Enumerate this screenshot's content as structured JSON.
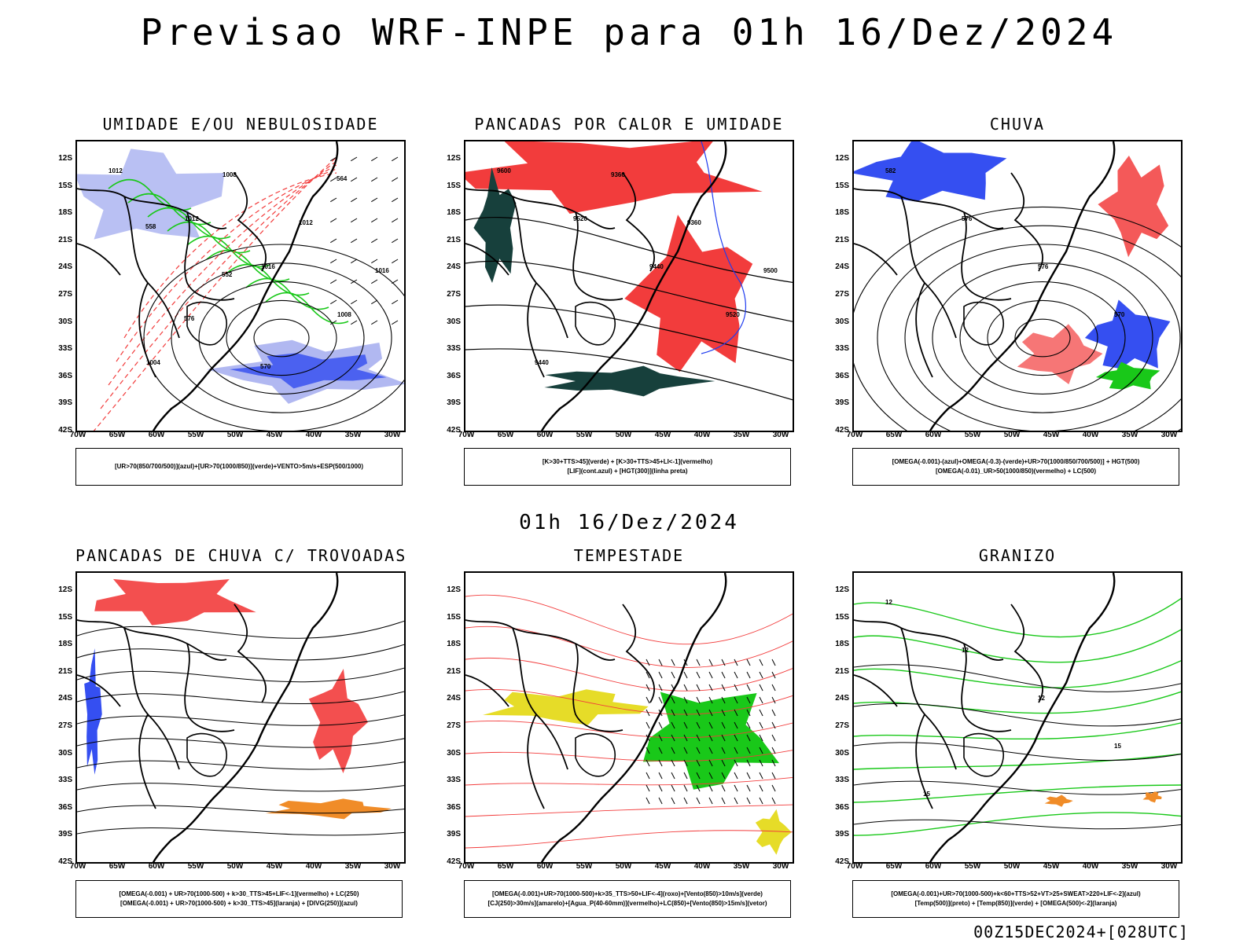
{
  "title": "Previsao WRF-INPE  para 01h 16/Dez/2024",
  "subtitle": "01h 16/Dez/2024",
  "run_info": "00Z15DEC2024+[028UTC]",
  "lat_labels": [
    "12S",
    "15S",
    "18S",
    "21S",
    "24S",
    "27S",
    "30S",
    "33S",
    "36S",
    "39S",
    "42S"
  ],
  "lon_labels": [
    "70W",
    "65W",
    "60W",
    "55W",
    "50W",
    "45W",
    "40W",
    "35W",
    "30W"
  ],
  "colors": {
    "red": "#f23c3c",
    "green": "#19c819",
    "blue": "#1f3cf0",
    "lightblue": "#a8b0f0",
    "yellow": "#e6dc28",
    "orange": "#f08c28",
    "darkteal": "#17403c"
  },
  "panels": [
    {
      "id": "umidade",
      "title": "UMIDADE E/OU NEBULOSIDADE",
      "legend": [
        "[UR>70(850/700/500)](azul)+[UR>70(1000/850)](verde)+VENTO>5m/s+ESP(500/1000)"
      ],
      "contour_labels": [
        "1012",
        "1012",
        "1016",
        "1008",
        "1004",
        "1008",
        "1012",
        "1016",
        "576",
        "570",
        "564",
        "558",
        "552"
      ]
    },
    {
      "id": "pancadas-calor",
      "title": "PANCADAS POR CALOR E UMIDADE",
      "legend": [
        "[K>30+TTS>45](verde) + [K>30+TTS>45+LI<-1](vermelho)",
        "[LIF](cont.azul) + [HGT(300)](linha preta)"
      ],
      "contour_labels": [
        "9600",
        "9520",
        "9440",
        "9520",
        "9440",
        "9360",
        "9360",
        "9500"
      ]
    },
    {
      "id": "chuva",
      "title": "CHUVA",
      "legend": [
        "[OMEGA(-0.001)-(azul)+OMEGA(-0.3)-(verde)+UR>70(1000/850/700/500)] + HGT(500)",
        "[OMEGA(-0.01)_UR>50(1000/850)(vermelho) + LC(500)"
      ],
      "contour_labels": [
        "582",
        "576",
        "576",
        "570"
      ]
    },
    {
      "id": "pancadas-trovoadas",
      "title": "PANCADAS DE CHUVA C/ TROVOADAS",
      "legend": [
        "[OMEGA(-0.001) + UR>70(1000-500) + k>30_TTS>45+LIF<-1](vermelho) + LC(250)",
        "[OMEGA(-0.001) + UR>70(1000-500) + k>30_TTS>45](laranja) + [DIVG(250)](azul)"
      ],
      "contour_labels": []
    },
    {
      "id": "tempestade",
      "title": "TEMPESTADE",
      "legend": [
        "[OMEGA(-0.001)+UR>70(1000-500)+k>35_TTS>50+LIF<-4](roxo)+[Vento(850)>10m/s](verde)",
        "[CJ(250)>30m/s](amarelo)+[Agua_P(40-60mm)](vermelho)+LC(850)+[Vento(850)>15m/s](vetor)"
      ],
      "contour_labels": []
    },
    {
      "id": "granizo",
      "title": "GRANIZO",
      "legend": [
        "[OMEGA(-0.001)+UR>70(1000-500)+k<60+TTS>52+VT>25+SWEAT>220+LIF<-2](azul)",
        "[Temp(500)](preto) + [Temp(850)](verde) + [OMEGA(500)<-2](laranja)"
      ],
      "contour_labels": [
        "12",
        "12",
        "12",
        "15",
        "15"
      ]
    }
  ]
}
